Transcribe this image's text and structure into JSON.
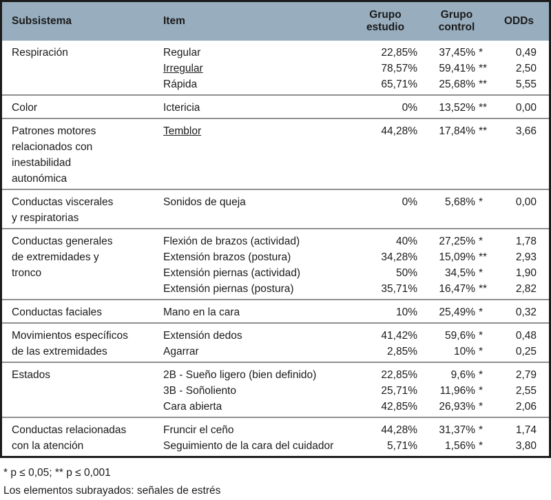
{
  "table": {
    "columns": {
      "subsistema": "Subsistema",
      "item": "Item",
      "grupo_estudio": "Grupo\nestudio",
      "grupo_control": "Grupo\ncontrol",
      "odds": "ODDs"
    },
    "sections": [
      {
        "subsistema": "Respiración",
        "rows": [
          {
            "item": "Regular",
            "underlined": false,
            "estudio": "22,85%",
            "control": "37,45%",
            "stars": "*",
            "odds": "0,49"
          },
          {
            "item": "Irregular",
            "underlined": true,
            "estudio": "78,57%",
            "control": "59,41%",
            "stars": "**",
            "odds": "2,50"
          },
          {
            "item": "Rápida",
            "underlined": false,
            "estudio": "65,71%",
            "control": "25,68%",
            "stars": "**",
            "odds": "5,55"
          }
        ]
      },
      {
        "subsistema": "Color",
        "rows": [
          {
            "item": "Ictericia",
            "underlined": false,
            "estudio": "0%",
            "control": "13,52%",
            "stars": "**",
            "odds": "0,00"
          }
        ]
      },
      {
        "subsistema": "Patrones motores\nrelacionados con\ninestabilidad\nautonómica",
        "rows": [
          {
            "item": "Temblor",
            "underlined": true,
            "estudio": "44,28%",
            "control": "17,84%",
            "stars": "**",
            "odds": "3,66"
          }
        ]
      },
      {
        "subsistema": "Conductas viscerales\ny respiratorias",
        "rows": [
          {
            "item": "Sonidos de queja",
            "underlined": false,
            "estudio": "0%",
            "control": "5,68%",
            "stars": "*",
            "odds": "0,00"
          }
        ]
      },
      {
        "subsistema": "Conductas generales\nde extremidades y\ntronco",
        "rows": [
          {
            "item": "Flexión de brazos (actividad)",
            "underlined": false,
            "estudio": "40%",
            "control": "27,25%",
            "stars": "*",
            "odds": "1,78"
          },
          {
            "item": "Extensión brazos (postura)",
            "underlined": false,
            "estudio": "34,28%",
            "control": "15,09%",
            "stars": "**",
            "odds": "2,93"
          },
          {
            "item": "Extensión piernas (actividad)",
            "underlined": false,
            "estudio": "50%",
            "control": "34,5%",
            "stars": "*",
            "odds": "1,90"
          },
          {
            "item": "Extensión piernas (postura)",
            "underlined": false,
            "estudio": "35,71%",
            "control": "16,47%",
            "stars": "**",
            "odds": "2,82"
          }
        ]
      },
      {
        "subsistema": "Conductas faciales",
        "rows": [
          {
            "item": "Mano en la cara",
            "underlined": false,
            "estudio": "10%",
            "control": "25,49%",
            "stars": "*",
            "odds": "0,32"
          }
        ]
      },
      {
        "subsistema": "Movimientos específicos\nde las extremidades",
        "rows": [
          {
            "item": "Extensión dedos",
            "underlined": false,
            "estudio": "41,42%",
            "control": "59,6%",
            "stars": "*",
            "odds": "0,48"
          },
          {
            "item": "Agarrar",
            "underlined": false,
            "estudio": "2,85%",
            "control": "10%",
            "stars": "*",
            "odds": "0,25"
          }
        ]
      },
      {
        "subsistema": "Estados",
        "rows": [
          {
            "item": "2B - Sueño ligero (bien definido)",
            "underlined": false,
            "estudio": "22,85%",
            "control": "9,6%",
            "stars": "*",
            "odds": "2,79"
          },
          {
            "item": "3B - Soñoliento",
            "underlined": false,
            "estudio": "25,71%",
            "control": "11,96%",
            "stars": "*",
            "odds": "2,55"
          },
          {
            "item": "Cara abierta",
            "underlined": false,
            "estudio": "42,85%",
            "control": "26,93%",
            "stars": "*",
            "odds": "2,06"
          }
        ]
      },
      {
        "subsistema": "Conductas relacionadas\ncon la atención",
        "rows": [
          {
            "item": "Fruncir el ceño",
            "underlined": false,
            "estudio": "44,28%",
            "control": "31,37%",
            "stars": "*",
            "odds": "1,74"
          },
          {
            "item": "Seguimiento de la cara del cuidador",
            "underlined": false,
            "estudio": "5,71%",
            "control": "1,56%",
            "stars": "*",
            "odds": "3,80"
          }
        ]
      }
    ]
  },
  "footnotes": {
    "significance": "* p ≤ 0,05; ** p ≤ 0,001",
    "underline_note": "Los elementos subrayados: señales de estrés"
  },
  "colors": {
    "header_bg": "#98aebf",
    "outer_border": "#1b1b1b",
    "separator": "#8f8f8f",
    "text": "#1a1a1a"
  }
}
